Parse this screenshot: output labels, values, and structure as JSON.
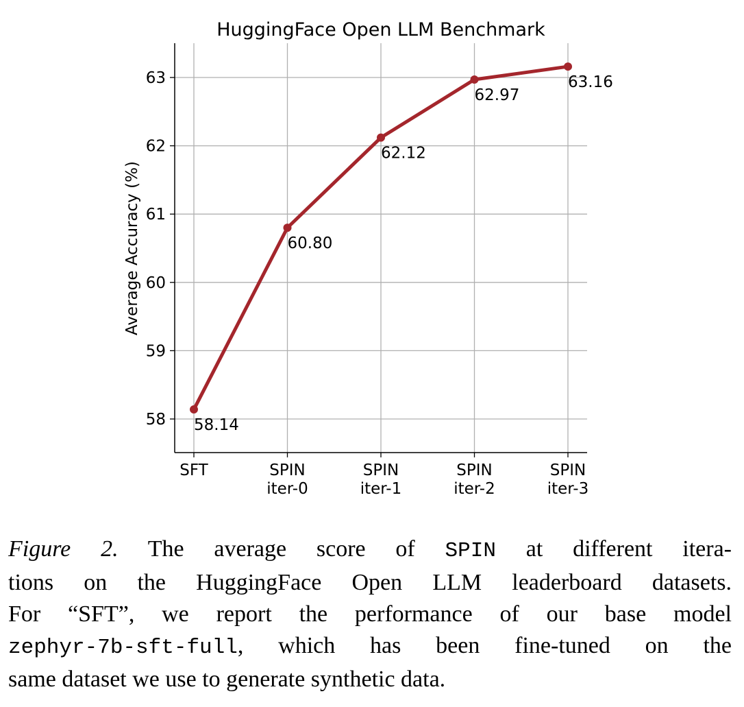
{
  "chart_data": {
    "type": "line",
    "title": "HuggingFace Open LLM Benchmark",
    "xlabel": "",
    "ylabel": "Average Accuracy (%)",
    "categories": [
      [
        "SFT"
      ],
      [
        "SPIN",
        "iter-0"
      ],
      [
        "SPIN",
        "iter-1"
      ],
      [
        "SPIN",
        "iter-2"
      ],
      [
        "SPIN",
        "iter-3"
      ]
    ],
    "series": [
      {
        "name": "SPIN",
        "values": [
          58.14,
          60.8,
          62.12,
          62.97,
          63.16
        ],
        "labels": [
          "58.14",
          "60.80",
          "62.12",
          "62.97",
          "63.16"
        ],
        "color": "#a4262c"
      }
    ],
    "ylim": [
      57.5,
      63.5
    ],
    "yticks": [
      58,
      59,
      60,
      61,
      62,
      63
    ],
    "grid": true,
    "legend": "none"
  },
  "caption": {
    "lines": [
      [
        {
          "t": "Figure 2.",
          "c": "fig"
        },
        {
          "t": " The average score of "
        },
        {
          "t": "SPIN",
          "c": "mono"
        },
        {
          "t": " at different itera-"
        }
      ],
      [
        {
          "t": "tions on the HuggingFace Open LLM leaderboard datasets."
        }
      ],
      [
        {
          "t": "For “SFT”, we report the performance of our base model"
        }
      ],
      [
        {
          "t": "zephyr-7b-sft-full",
          "c": "mono"
        },
        {
          "t": ", which has been fine-tuned on the"
        }
      ],
      [
        {
          "t": "same dataset we use to generate synthetic data."
        }
      ]
    ]
  }
}
